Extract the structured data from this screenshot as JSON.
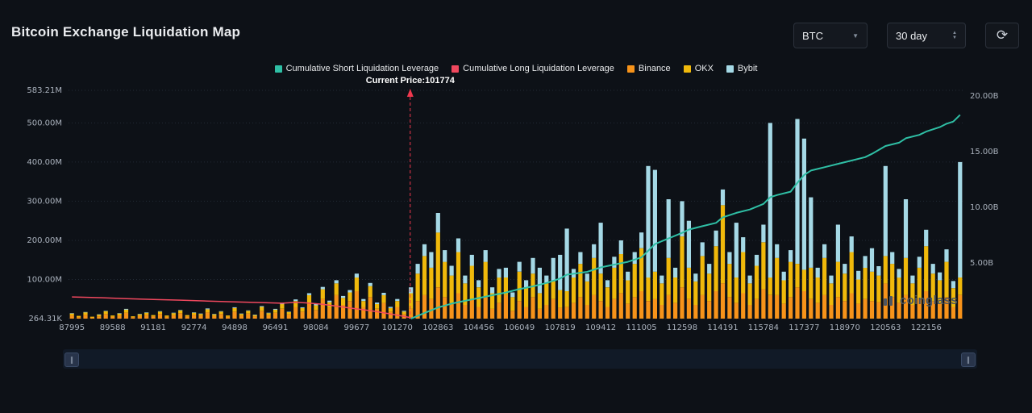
{
  "header": {
    "title": "Bitcoin Exchange Liquidation Map"
  },
  "controls": {
    "symbol": "BTC",
    "range": "30 day"
  },
  "icons": {
    "refresh": "⟳",
    "caret_down": "▼",
    "caret_up": "▲",
    "pause": "∥"
  },
  "legend": [
    {
      "id": "short",
      "label": "Cumulative Short Liquidation Leverage",
      "color": "#2fbfa5"
    },
    {
      "id": "long",
      "label": "Cumulative Long Liquidation Leverage",
      "color": "#f0485e"
    },
    {
      "id": "binance",
      "label": "Binance",
      "color": "#f7931a"
    },
    {
      "id": "okx",
      "label": "OKX",
      "color": "#f0b90b"
    },
    {
      "id": "bybit",
      "label": "Bybit",
      "color": "#a5d9e6"
    }
  ],
  "current_price_label": "Current Price:101774",
  "watermark": "coinglass",
  "chart_data": {
    "type": "bar",
    "stacked": true,
    "title": "Bitcoin Exchange Liquidation Map",
    "x_tick_labels": [
      "87995",
      "89588",
      "91181",
      "92774",
      "94898",
      "96491",
      "98084",
      "99677",
      "101270",
      "102863",
      "104456",
      "106049",
      "107819",
      "109412",
      "111005",
      "112598",
      "114191",
      "115784",
      "117377",
      "118970",
      "120563",
      "122156"
    ],
    "ticks_every": 6,
    "left_axis": {
      "unit": "M",
      "max": 583.21,
      "ticks": [
        {
          "label": "583.21M",
          "value": 583.21
        },
        {
          "label": "500.00M",
          "value": 500
        },
        {
          "label": "400.00M",
          "value": 400
        },
        {
          "label": "300.00M",
          "value": 300
        },
        {
          "label": "200.00M",
          "value": 200
        },
        {
          "label": "100.00M",
          "value": 100
        },
        {
          "label": "264.31K",
          "value": 0.26
        }
      ]
    },
    "right_axis": {
      "unit": "B",
      "max": 20.5,
      "ticks": [
        {
          "label": "20.00B",
          "value": 20
        },
        {
          "label": "15.00B",
          "value": 15
        },
        {
          "label": "10.00B",
          "value": 10
        },
        {
          "label": "5.00B",
          "value": 5
        }
      ]
    },
    "series": [
      {
        "name": "Binance",
        "color": "#f7931a",
        "values": [
          8,
          4,
          10,
          3,
          6,
          12,
          5,
          8,
          15,
          4,
          7,
          10,
          6,
          12,
          5,
          9,
          14,
          6,
          10,
          8,
          16,
          7,
          12,
          5,
          18,
          8,
          13,
          6,
          20,
          9,
          15,
          25,
          11,
          30,
          18,
          40,
          22,
          50,
          28,
          60,
          35,
          45,
          70,
          30,
          55,
          25,
          40,
          18,
          30,
          12,
          25,
          45,
          60,
          50,
          80,
          55,
          40,
          65,
          35,
          50,
          30,
          55,
          25,
          40,
          60,
          20,
          45,
          30,
          55,
          25,
          35,
          50,
          28,
          30,
          40,
          55,
          35,
          60,
          45,
          30,
          50,
          65,
          38,
          55,
          70,
          45,
          50,
          35,
          60,
          40,
          80,
          50,
          35,
          60,
          45,
          70,
          90,
          55,
          40,
          65,
          35,
          50,
          75,
          60,
          60,
          38,
          55,
          80,
          70,
          50,
          40,
          60,
          35,
          55,
          45,
          65,
          38,
          50,
          45,
          42,
          90,
          55,
          40,
          60,
          35,
          50,
          70,
          45,
          38,
          55,
          30,
          60
        ]
      },
      {
        "name": "OKX",
        "color": "#f0b90b",
        "values": [
          5,
          3,
          6,
          2,
          4,
          7,
          3,
          5,
          8,
          2,
          4,
          5,
          3,
          6,
          3,
          5,
          7,
          3,
          5,
          4,
          8,
          4,
          6,
          3,
          9,
          4,
          7,
          3,
          10,
          5,
          8,
          12,
          6,
          15,
          9,
          20,
          12,
          25,
          14,
          30,
          18,
          22,
          35,
          15,
          28,
          12,
          20,
          9,
          15,
          6,
          40,
          70,
          100,
          80,
          140,
          90,
          70,
          105,
          55,
          85,
          50,
          90,
          40,
          65,
          45,
          35,
          75,
          50,
          60,
          40,
          55,
          45,
          45,
          40,
          65,
          85,
          60,
          95,
          70,
          50,
          80,
          100,
          60,
          85,
          110,
          60,
          70,
          55,
          95,
          65,
          130,
          80,
          60,
          100,
          70,
          115,
          200,
          85,
          65,
          105,
          55,
          85,
          120,
          45,
          95,
          60,
          90,
          60,
          55,
          80,
          65,
          95,
          55,
          90,
          70,
          105,
          62,
          80,
          75,
          68,
          70,
          85,
          65,
          95,
          55,
          80,
          115,
          70,
          60,
          90,
          48,
          45
        ]
      },
      {
        "name": "Bybit",
        "color": "#a5d9e6",
        "values": [
          1,
          0,
          1,
          0,
          1,
          1,
          0,
          1,
          2,
          0,
          1,
          1,
          0,
          1,
          0,
          1,
          1,
          0,
          1,
          1,
          2,
          1,
          1,
          0,
          2,
          1,
          1,
          1,
          2,
          1,
          2,
          3,
          1,
          4,
          2,
          5,
          3,
          6,
          4,
          8,
          5,
          6,
          10,
          5,
          8,
          4,
          6,
          3,
          5,
          2,
          15,
          25,
          30,
          40,
          50,
          30,
          25,
          35,
          20,
          28,
          18,
          30,
          15,
          22,
          25,
          12,
          25,
          18,
          40,
          65,
          20,
          60,
          90,
          160,
          22,
          30,
          20,
          35,
          130,
          18,
          28,
          35,
          22,
          30,
          40,
          285,
          260,
          20,
          150,
          25,
          90,
          120,
          20,
          35,
          25,
          40,
          40,
          30,
          140,
          38,
          20,
          28,
          45,
          395,
          35,
          22,
          30,
          370,
          335,
          180,
          25,
          35,
          20,
          95,
          25,
          40,
          22,
          30,
          60,
          24,
          230,
          30,
          22,
          150,
          20,
          28,
          42,
          25,
          20,
          32,
          18,
          295
        ]
      }
    ],
    "lines": [
      {
        "name": "Cumulative Short Liquidation Leverage",
        "color": "#2fbfa5",
        "axis": "right",
        "width": 2,
        "points": [
          [
            50,
            0.0
          ],
          [
            52,
            0.5
          ],
          [
            54,
            1.0
          ],
          [
            56,
            1.35
          ],
          [
            58,
            1.6
          ],
          [
            60,
            1.85
          ],
          [
            62,
            2.1
          ],
          [
            64,
            2.35
          ],
          [
            66,
            2.65
          ],
          [
            68,
            2.9
          ],
          [
            70,
            3.2
          ],
          [
            72,
            3.6
          ],
          [
            73,
            3.95
          ],
          [
            76,
            4.2
          ],
          [
            78,
            4.6
          ],
          [
            80,
            4.85
          ],
          [
            82,
            5.1
          ],
          [
            84,
            5.5
          ],
          [
            85,
            6.1
          ],
          [
            86,
            6.7
          ],
          [
            88,
            7.2
          ],
          [
            90,
            7.7
          ],
          [
            91,
            8.0
          ],
          [
            93,
            8.3
          ],
          [
            95,
            8.6
          ],
          [
            96,
            9.1
          ],
          [
            98,
            9.5
          ],
          [
            100,
            9.8
          ],
          [
            102,
            10.3
          ],
          [
            103,
            10.9
          ],
          [
            104,
            11.1
          ],
          [
            106,
            11.4
          ],
          [
            107,
            12.2
          ],
          [
            108,
            12.9
          ],
          [
            109,
            13.3
          ],
          [
            111,
            13.6
          ],
          [
            113,
            13.9
          ],
          [
            115,
            14.2
          ],
          [
            117,
            14.5
          ],
          [
            118,
            14.8
          ],
          [
            120,
            15.5
          ],
          [
            122,
            15.8
          ],
          [
            123,
            16.2
          ],
          [
            125,
            16.5
          ],
          [
            126,
            16.8
          ],
          [
            128,
            17.2
          ],
          [
            129,
            17.5
          ],
          [
            130,
            17.7
          ],
          [
            131,
            18.3
          ]
        ]
      },
      {
        "name": "Cumulative Long Liquidation Leverage",
        "color": "#f0485e",
        "axis": "right",
        "width": 1.5,
        "points": [
          [
            0,
            1.95
          ],
          [
            4,
            1.88
          ],
          [
            8,
            1.8
          ],
          [
            12,
            1.72
          ],
          [
            16,
            1.66
          ],
          [
            20,
            1.58
          ],
          [
            24,
            1.5
          ],
          [
            28,
            1.44
          ],
          [
            31,
            1.38
          ],
          [
            33,
            1.46
          ],
          [
            35,
            1.4
          ],
          [
            37,
            1.28
          ],
          [
            39,
            1.12
          ],
          [
            41,
            0.95
          ],
          [
            43,
            0.8
          ],
          [
            45,
            0.62
          ],
          [
            47,
            0.42
          ],
          [
            49,
            0.2
          ],
          [
            50,
            0.08
          ]
        ]
      }
    ],
    "current_price": {
      "value": 101774,
      "index": 49.9,
      "line_color": "#f0384e"
    }
  }
}
